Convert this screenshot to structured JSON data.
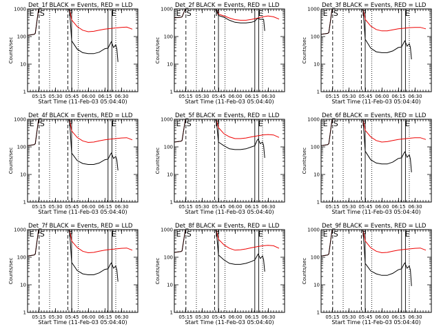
{
  "chart_data": {
    "type": "line",
    "xlabel": "Start Time (11-Feb-03 05:04:40)",
    "ylabel": "Counts/sec",
    "y_scale": "log",
    "ylim": [
      1,
      1000
    ],
    "y_tick_labels": [
      "1",
      "10",
      "100",
      "1000"
    ],
    "x_range_minutes": [
      0,
      100
    ],
    "x_tick_labels": [
      "05:15",
      "05:30",
      "05:45",
      "06:00",
      "06:15",
      "06:30"
    ],
    "x_tick_minutes": [
      10.3,
      25.3,
      40.3,
      55.3,
      70.3,
      85.3
    ],
    "series_colors": {
      "events": "#000000",
      "lld": "#ee0000"
    },
    "markers": [
      {
        "label": "E",
        "minute": 1
      },
      {
        "label": "S",
        "minute": 10.5
      },
      {
        "label": "F",
        "minute": 36.5
      },
      {
        "label": "E",
        "minute": 75.5
      }
    ],
    "panels": [
      {
        "title": "Det_1f BLACK = Events, RED = LLD",
        "events": {
          "x": [
            0,
            6,
            7,
            10,
            38,
            40,
            45,
            50,
            55,
            60,
            65,
            70,
            73,
            75,
            76,
            78,
            80,
            81,
            82
          ],
          "y": [
            110,
            120,
            130,
            1000,
            1000,
            70,
            35,
            26,
            24,
            24,
            27,
            36,
            38,
            55,
            65,
            40,
            50,
            35,
            12
          ]
        },
        "lld": {
          "x": [
            0,
            6,
            7,
            10,
            38,
            40,
            45,
            50,
            55,
            60,
            65,
            70,
            75,
            80,
            85,
            90,
            95
          ],
          "y": [
            110,
            120,
            130,
            1000,
            1000,
            400,
            230,
            170,
            150,
            155,
            170,
            185,
            195,
            205,
            215,
            220,
            185
          ]
        }
      },
      {
        "title": "Det_2f BLACK = Events, RED = LLD",
        "events": {
          "x": [
            0,
            6,
            7,
            10,
            38,
            40,
            45,
            50,
            55,
            60,
            65,
            70,
            73,
            75,
            76,
            78,
            80,
            81,
            82
          ],
          "y": [
            480,
            500,
            520,
            1000,
            1000,
            580,
            500,
            390,
            330,
            310,
            310,
            330,
            360,
            440,
            460,
            420,
            430,
            420,
            160
          ]
        },
        "lld": {
          "x": [
            0,
            6,
            7,
            10,
            38,
            40,
            45,
            50,
            55,
            60,
            65,
            70,
            75,
            80,
            85,
            90,
            95
          ],
          "y": [
            480,
            500,
            520,
            1000,
            1000,
            650,
            560,
            470,
            410,
            390,
            390,
            420,
            460,
            520,
            560,
            520,
            430
          ]
        }
      },
      {
        "title": "Det_3f BLACK = Events, RED = LLD",
        "events": {
          "x": [
            0,
            6,
            7,
            10,
            38,
            40,
            45,
            50,
            55,
            60,
            65,
            70,
            73,
            75,
            76,
            78,
            80,
            81,
            82
          ],
          "y": [
            120,
            130,
            140,
            1000,
            1000,
            80,
            38,
            28,
            26,
            26,
            30,
            40,
            42,
            60,
            70,
            45,
            55,
            40,
            15
          ]
        },
        "lld": {
          "x": [
            0,
            6,
            7,
            10,
            38,
            40,
            45,
            50,
            55,
            60,
            65,
            70,
            75,
            80,
            85,
            90,
            95
          ],
          "y": [
            120,
            130,
            140,
            1000,
            1000,
            420,
            240,
            180,
            160,
            160,
            175,
            190,
            200,
            210,
            215,
            215,
            190
          ]
        }
      },
      {
        "title": "Det_4f BLACK = Events, RED = LLD",
        "events": {
          "x": [
            0,
            6,
            7,
            10,
            38,
            40,
            45,
            50,
            55,
            60,
            65,
            70,
            73,
            75,
            76,
            78,
            80,
            81,
            82
          ],
          "y": [
            110,
            120,
            130,
            1000,
            1000,
            60,
            32,
            25,
            23,
            23,
            26,
            34,
            36,
            52,
            60,
            38,
            45,
            33,
            14
          ]
        },
        "lld": {
          "x": [
            0,
            6,
            7,
            10,
            38,
            40,
            45,
            50,
            55,
            60,
            65,
            70,
            75,
            80,
            85,
            90,
            95
          ],
          "y": [
            110,
            120,
            130,
            1000,
            1000,
            380,
            220,
            165,
            145,
            150,
            165,
            180,
            190,
            200,
            210,
            215,
            180
          ]
        }
      },
      {
        "title": "Det_5f BLACK = Events, RED = LLD",
        "events": {
          "x": [
            0,
            6,
            7,
            10,
            38,
            40,
            45,
            50,
            55,
            60,
            65,
            70,
            73,
            75,
            76,
            78,
            80,
            81,
            82
          ],
          "y": [
            150,
            160,
            170,
            1000,
            1000,
            150,
            110,
            85,
            80,
            80,
            85,
            100,
            110,
            170,
            190,
            130,
            150,
            110,
            40
          ]
        },
        "lld": {
          "x": [
            0,
            6,
            7,
            10,
            38,
            40,
            45,
            50,
            55,
            60,
            65,
            70,
            75,
            80,
            85,
            90,
            95
          ],
          "y": [
            150,
            160,
            170,
            1000,
            1000,
            500,
            300,
            230,
            200,
            200,
            210,
            230,
            250,
            270,
            280,
            270,
            220
          ]
        }
      },
      {
        "title": "Det_6f BLACK = Events, RED = LLD",
        "events": {
          "x": [
            0,
            6,
            7,
            10,
            38,
            40,
            45,
            50,
            55,
            60,
            65,
            70,
            73,
            75,
            76,
            78,
            80,
            81,
            82
          ],
          "y": [
            110,
            120,
            130,
            1000,
            1000,
            70,
            34,
            26,
            24,
            24,
            28,
            38,
            40,
            58,
            66,
            42,
            52,
            36,
            12
          ]
        },
        "lld": {
          "x": [
            0,
            6,
            7,
            10,
            38,
            40,
            45,
            50,
            55,
            60,
            65,
            70,
            75,
            80,
            85,
            90,
            95
          ],
          "y": [
            110,
            120,
            130,
            1000,
            1000,
            400,
            230,
            170,
            150,
            155,
            170,
            185,
            195,
            205,
            215,
            215,
            185
          ]
        }
      },
      {
        "title": "Det_7f BLACK = Events, RED = LLD",
        "events": {
          "x": [
            0,
            6,
            7,
            10,
            38,
            40,
            45,
            50,
            55,
            60,
            65,
            70,
            73,
            75,
            76,
            78,
            80,
            81,
            82
          ],
          "y": [
            110,
            120,
            130,
            1000,
            1000,
            65,
            33,
            25,
            23,
            23,
            27,
            36,
            38,
            55,
            62,
            40,
            48,
            34,
            13
          ]
        },
        "lld": {
          "x": [
            0,
            6,
            7,
            10,
            38,
            40,
            45,
            50,
            55,
            60,
            65,
            70,
            75,
            80,
            85,
            90,
            95
          ],
          "y": [
            110,
            120,
            130,
            1000,
            1000,
            390,
            225,
            165,
            145,
            150,
            165,
            180,
            190,
            200,
            210,
            215,
            180
          ]
        }
      },
      {
        "title": "Det_8f BLACK = Events, RED = LLD",
        "events": {
          "x": [
            0,
            6,
            7,
            10,
            38,
            40,
            45,
            50,
            55,
            60,
            65,
            70,
            73,
            75,
            76,
            78,
            80,
            81,
            82
          ],
          "y": [
            150,
            160,
            170,
            1000,
            1000,
            120,
            80,
            60,
            55,
            55,
            60,
            70,
            80,
            110,
            130,
            90,
            110,
            80,
            30
          ]
        },
        "lld": {
          "x": [
            0,
            6,
            7,
            10,
            38,
            40,
            45,
            50,
            55,
            60,
            65,
            70,
            75,
            80,
            85,
            90,
            95
          ],
          "y": [
            150,
            160,
            170,
            1000,
            1000,
            450,
            280,
            210,
            180,
            185,
            200,
            220,
            240,
            260,
            270,
            260,
            210
          ]
        }
      },
      {
        "title": "Det_9f BLACK = Events, RED = LLD",
        "events": {
          "x": [
            0,
            6,
            7,
            10,
            38,
            40,
            45,
            50,
            55,
            60,
            65,
            70,
            73,
            75,
            76,
            78,
            80,
            81,
            82
          ],
          "y": [
            110,
            120,
            130,
            1000,
            1000,
            60,
            32,
            25,
            22,
            22,
            26,
            35,
            38,
            55,
            62,
            40,
            48,
            34,
            9
          ]
        },
        "lld": {
          "x": [
            0,
            6,
            7,
            10,
            38,
            40,
            45,
            50,
            55,
            60,
            65,
            70,
            75,
            80,
            85,
            90,
            95
          ],
          "y": [
            110,
            120,
            130,
            1000,
            1000,
            390,
            220,
            165,
            145,
            150,
            165,
            180,
            190,
            200,
            210,
            215,
            180
          ]
        }
      }
    ]
  }
}
